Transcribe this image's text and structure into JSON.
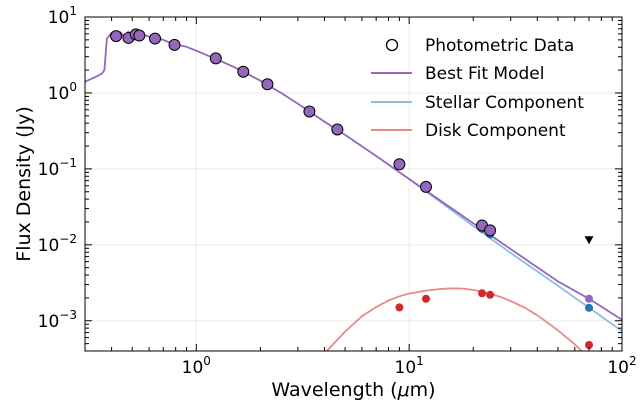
{
  "chart_data": {
    "type": "scatter",
    "xscale": "log",
    "yscale": "log",
    "xlim": [
      0.3,
      100
    ],
    "ylim": [
      0.0004,
      10
    ],
    "xlabel_text": "Wavelength (",
    "xlabel_mu": "μ",
    "xlabel_unit": "m)",
    "ylabel": "Flux Density (Jy)",
    "grid": true,
    "legend_position": "top-right",
    "x_ticks": [
      {
        "value": 1,
        "base": "10",
        "exp": "0"
      },
      {
        "value": 10,
        "base": "10",
        "exp": "1"
      },
      {
        "value": 100,
        "base": "10",
        "exp": "2"
      }
    ],
    "y_ticks": [
      {
        "value": 0.001,
        "base": "10",
        "exp": "−3"
      },
      {
        "value": 0.01,
        "base": "10",
        "exp": "−2"
      },
      {
        "value": 0.1,
        "base": "10",
        "exp": "−1"
      },
      {
        "value": 1,
        "base": "10",
        "exp": "0"
      },
      {
        "value": 10,
        "base": "10",
        "exp": "1"
      }
    ],
    "legend": {
      "photometric": "Photometric Data",
      "best_fit": "Best Fit Model",
      "stellar": "Stellar Component",
      "disk": "Disk Component"
    },
    "colors": {
      "best_fit": "#9467bd",
      "stellar": "#8fbde0",
      "disk": "#e88a8a",
      "photometric_fill": "#9467bd",
      "stellar_points": "#1f77b4",
      "disk_points": "#d62728",
      "upper_limit": "#000000"
    },
    "photometric_data": [
      {
        "x": 0.42,
        "y": 5.6
      },
      {
        "x": 0.48,
        "y": 5.3
      },
      {
        "x": 0.52,
        "y": 5.9
      },
      {
        "x": 0.54,
        "y": 5.7
      },
      {
        "x": 0.64,
        "y": 5.2
      },
      {
        "x": 0.79,
        "y": 4.3
      },
      {
        "x": 1.235,
        "y": 2.85
      },
      {
        "x": 1.662,
        "y": 1.9
      },
      {
        "x": 2.159,
        "y": 1.3
      },
      {
        "x": 3.4,
        "y": 0.57
      },
      {
        "x": 4.6,
        "y": 0.33
      },
      {
        "x": 9.0,
        "y": 0.115
      },
      {
        "x": 12.0,
        "y": 0.058
      },
      {
        "x": 22.0,
        "y": 0.018
      },
      {
        "x": 24.0,
        "y": 0.0155
      }
    ],
    "upper_limits": [
      {
        "x": 70.0,
        "y": 0.0115
      }
    ],
    "stellar_points": [
      {
        "x": 22.0,
        "y": 0.0162
      },
      {
        "x": 24.0,
        "y": 0.0137
      },
      {
        "x": 70.0,
        "y": 0.00148
      }
    ],
    "disk_points": [
      {
        "x": 9.0,
        "y": 0.0015
      },
      {
        "x": 12.0,
        "y": 0.00195
      },
      {
        "x": 22.0,
        "y": 0.0023
      },
      {
        "x": 24.0,
        "y": 0.0022
      },
      {
        "x": 70.0,
        "y": 0.00048
      }
    ],
    "model_points": [
      {
        "x": 70.0,
        "y": 0.00195
      }
    ],
    "best_fit_curve": [
      [
        0.3,
        1.4
      ],
      [
        0.34,
        1.65
      ],
      [
        0.36,
        1.8
      ],
      [
        0.37,
        2.0
      ],
      [
        0.38,
        5.2
      ],
      [
        0.4,
        6.2
      ],
      [
        0.42,
        5.5
      ],
      [
        0.44,
        6.3
      ],
      [
        0.46,
        5.4
      ],
      [
        0.48,
        6.4
      ],
      [
        0.5,
        5.7
      ],
      [
        0.53,
        6.2
      ],
      [
        0.56,
        5.9
      ],
      [
        0.6,
        5.5
      ],
      [
        0.65,
        5.3
      ],
      [
        0.7,
        5.0
      ],
      [
        0.75,
        4.6
      ],
      [
        0.8,
        4.5
      ],
      [
        0.85,
        4.2
      ],
      [
        0.9,
        4.05
      ],
      [
        0.95,
        3.8
      ],
      [
        1.0,
        3.6
      ],
      [
        1.2,
        2.9
      ],
      [
        1.5,
        2.2
      ],
      [
        2.0,
        1.45
      ],
      [
        2.5,
        1.0
      ],
      [
        3.0,
        0.72
      ],
      [
        4.0,
        0.42
      ],
      [
        5.0,
        0.28
      ],
      [
        7.0,
        0.148
      ],
      [
        10.0,
        0.0735
      ],
      [
        20.0,
        0.0192
      ],
      [
        30.0,
        0.0088
      ],
      [
        50.0,
        0.0033
      ],
      [
        70.0,
        0.00195
      ],
      [
        100.0,
        0.00103
      ]
    ],
    "stellar_curve": [
      [
        10.0,
        0.0735
      ],
      [
        20.0,
        0.0177
      ],
      [
        30.0,
        0.0078
      ],
      [
        50.0,
        0.0029
      ],
      [
        70.0,
        0.00149
      ],
      [
        100.0,
        0.00073
      ]
    ],
    "disk_curve": [
      [
        4.1,
        0.0004
      ],
      [
        5.0,
        0.00072
      ],
      [
        6.0,
        0.00115
      ],
      [
        7.0,
        0.00152
      ],
      [
        8.0,
        0.00185
      ],
      [
        9.0,
        0.0021
      ],
      [
        10.0,
        0.00228
      ],
      [
        12.0,
        0.0025
      ],
      [
        14.0,
        0.00262
      ],
      [
        16.0,
        0.00268
      ],
      [
        18.0,
        0.00265
      ],
      [
        20.0,
        0.00255
      ],
      [
        22.0,
        0.00242
      ],
      [
        24.0,
        0.00228
      ],
      [
        27.0,
        0.00205
      ],
      [
        30.0,
        0.00182
      ],
      [
        35.0,
        0.00148
      ],
      [
        40.0,
        0.00118
      ],
      [
        50.0,
        0.00075
      ],
      [
        60.0,
        0.00049
      ],
      [
        70.0,
        0.00032
      ]
    ]
  }
}
